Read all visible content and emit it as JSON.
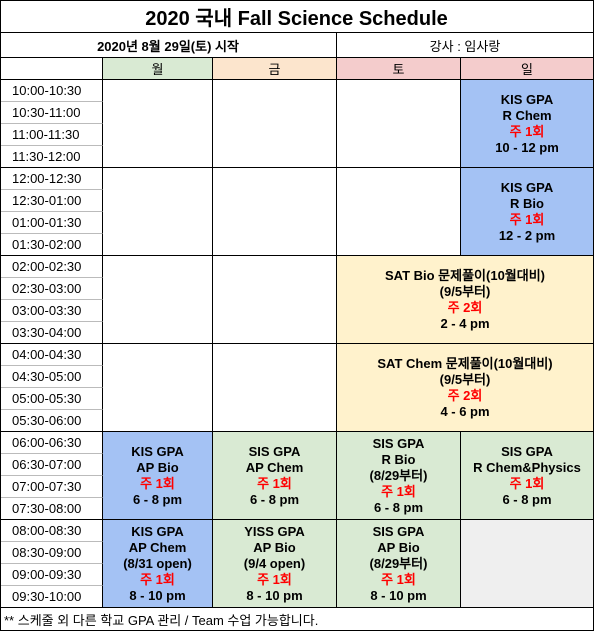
{
  "header": {
    "title": "2020 국내 Fall Science Schedule",
    "start": "2020년 8월 29일(토) 시작",
    "instructor": "강사 : 임사랑"
  },
  "days": [
    {
      "label": "월",
      "color": "#d9ead3"
    },
    {
      "label": "금",
      "color": "#fce5cd"
    },
    {
      "label": "토",
      "color": "#f4cccc"
    },
    {
      "label": "일",
      "color": "#f4cccc"
    }
  ],
  "times": [
    "10:00-10:30",
    "10:30-11:00",
    "11:00-11:30",
    "11:30-12:00",
    "12:00-12:30",
    "12:30-01:00",
    "01:00-01:30",
    "01:30-02:00",
    "02:00-02:30",
    "02:30-03:00",
    "03:00-03:30",
    "03:30-04:00",
    "04:00-04:30",
    "04:30-05:00",
    "05:00-05:30",
    "05:30-06:00",
    "06:00-06:30",
    "06:30-07:00",
    "07:00-07:30",
    "07:30-08:00",
    "08:00-08:30",
    "08:30-09:00",
    "09:00-09:30",
    "09:30-10:00"
  ],
  "sessions": [
    {
      "cells": [
        {},
        {},
        {},
        {
          "course": [
            "KIS GPA",
            "R Chem"
          ],
          "frequency": "주 1회",
          "hours": "10 - 12 pm",
          "color": "#a4c2f4"
        }
      ]
    },
    {
      "cells": [
        {},
        {},
        {},
        {
          "course": [
            "KIS GPA",
            "R Bio"
          ],
          "frequency": "주 1회",
          "hours": "12 - 2 pm",
          "color": "#a4c2f4"
        }
      ]
    },
    {
      "cells": [
        {},
        {},
        {
          "span": 2,
          "course": [
            "SAT Bio 문제풀이(10월대비)",
            "(9/5부터)"
          ],
          "frequency": "주 2회",
          "hours": "2 - 4 pm",
          "color": "#fff2cc"
        }
      ]
    },
    {
      "cells": [
        {},
        {},
        {
          "span": 2,
          "course": [
            "SAT Chem 문제풀이(10월대비)",
            "(9/5부터)"
          ],
          "frequency": "주 2회",
          "hours": "4 - 6 pm",
          "color": "#fff2cc"
        }
      ]
    },
    {
      "cells": [
        {
          "course": [
            "KIS GPA",
            "AP Bio"
          ],
          "frequency": "주 1회",
          "hours": "6 - 8 pm",
          "color": "#a4c2f4"
        },
        {
          "course": [
            "SIS GPA",
            "AP Chem"
          ],
          "frequency": "주 1회",
          "hours": "6 - 8 pm",
          "color": "#d9ead3"
        },
        {
          "course": [
            "SIS GPA",
            "R Bio",
            "(8/29부터)"
          ],
          "frequency": "주 1회",
          "hours": "6 - 8 pm",
          "color": "#d9ead3"
        },
        {
          "course": [
            "SIS GPA",
            "R Chem&Physics"
          ],
          "frequency": "주 1회",
          "hours": "6 - 8 pm",
          "color": "#d9ead3"
        }
      ]
    },
    {
      "cells": [
        {
          "course": [
            "KIS GPA",
            "AP Chem",
            "(8/31 open)"
          ],
          "frequency": "주 1회",
          "hours": "8 - 10 pm",
          "color": "#a4c2f4"
        },
        {
          "course": [
            "YISS GPA",
            "AP Bio",
            "(9/4 open)"
          ],
          "frequency": "주 1회",
          "hours": "8 - 10 pm",
          "color": "#d9ead3"
        },
        {
          "course": [
            "SIS GPA",
            "AP Bio",
            "(8/29부터)"
          ],
          "frequency": "주 1회",
          "hours": "8 - 10 pm",
          "color": "#d9ead3"
        },
        {
          "color": "#efefef"
        }
      ]
    }
  ],
  "footer": "** 스케줄 외 다른 학교 GPA 관리 / Team 수업 가능합니다."
}
